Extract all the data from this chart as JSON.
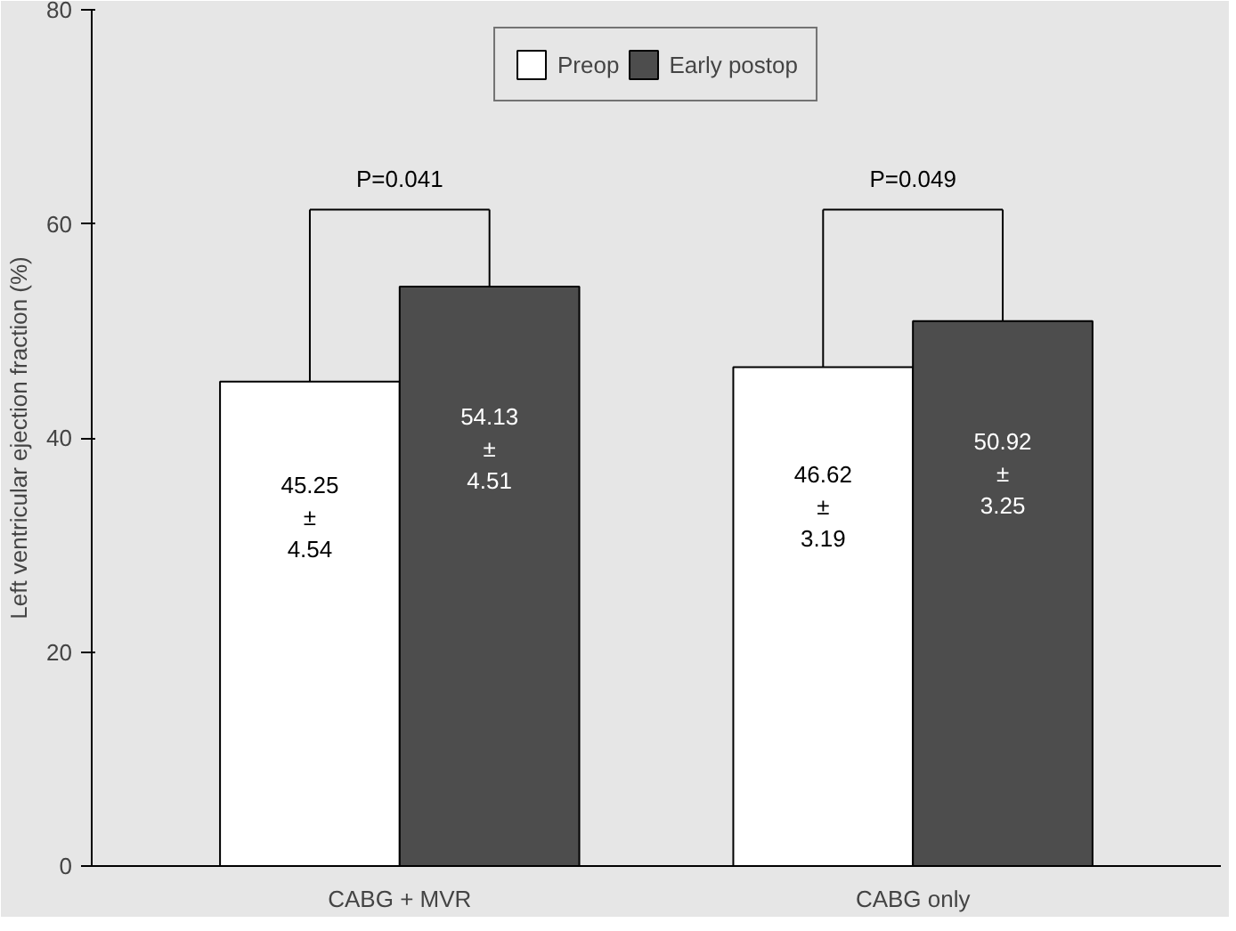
{
  "chart_data": {
    "type": "bar",
    "ylabel": "Left ventricular ejection fraction (%)",
    "categories": [
      "CABG + MVR",
      "CABG only"
    ],
    "series": [
      {
        "name": "Preop",
        "color": "#ffffff",
        "values": [
          45.25,
          46.62
        ],
        "value_labels": [
          "45.25\n±\n4.54",
          "46.62\n±\n3.19"
        ]
      },
      {
        "name": "Early postop",
        "color": "#4d4d4d",
        "values": [
          54.13,
          50.92
        ],
        "value_labels": [
          "54.13\n±\n4.51",
          "50.92\n±\n3.25"
        ]
      }
    ],
    "ylim": [
      0,
      80
    ],
    "yticks": [
      0,
      20,
      40,
      60,
      80
    ],
    "legend": "top",
    "annotations": [
      "P=0.041",
      "P=0.049"
    ]
  }
}
